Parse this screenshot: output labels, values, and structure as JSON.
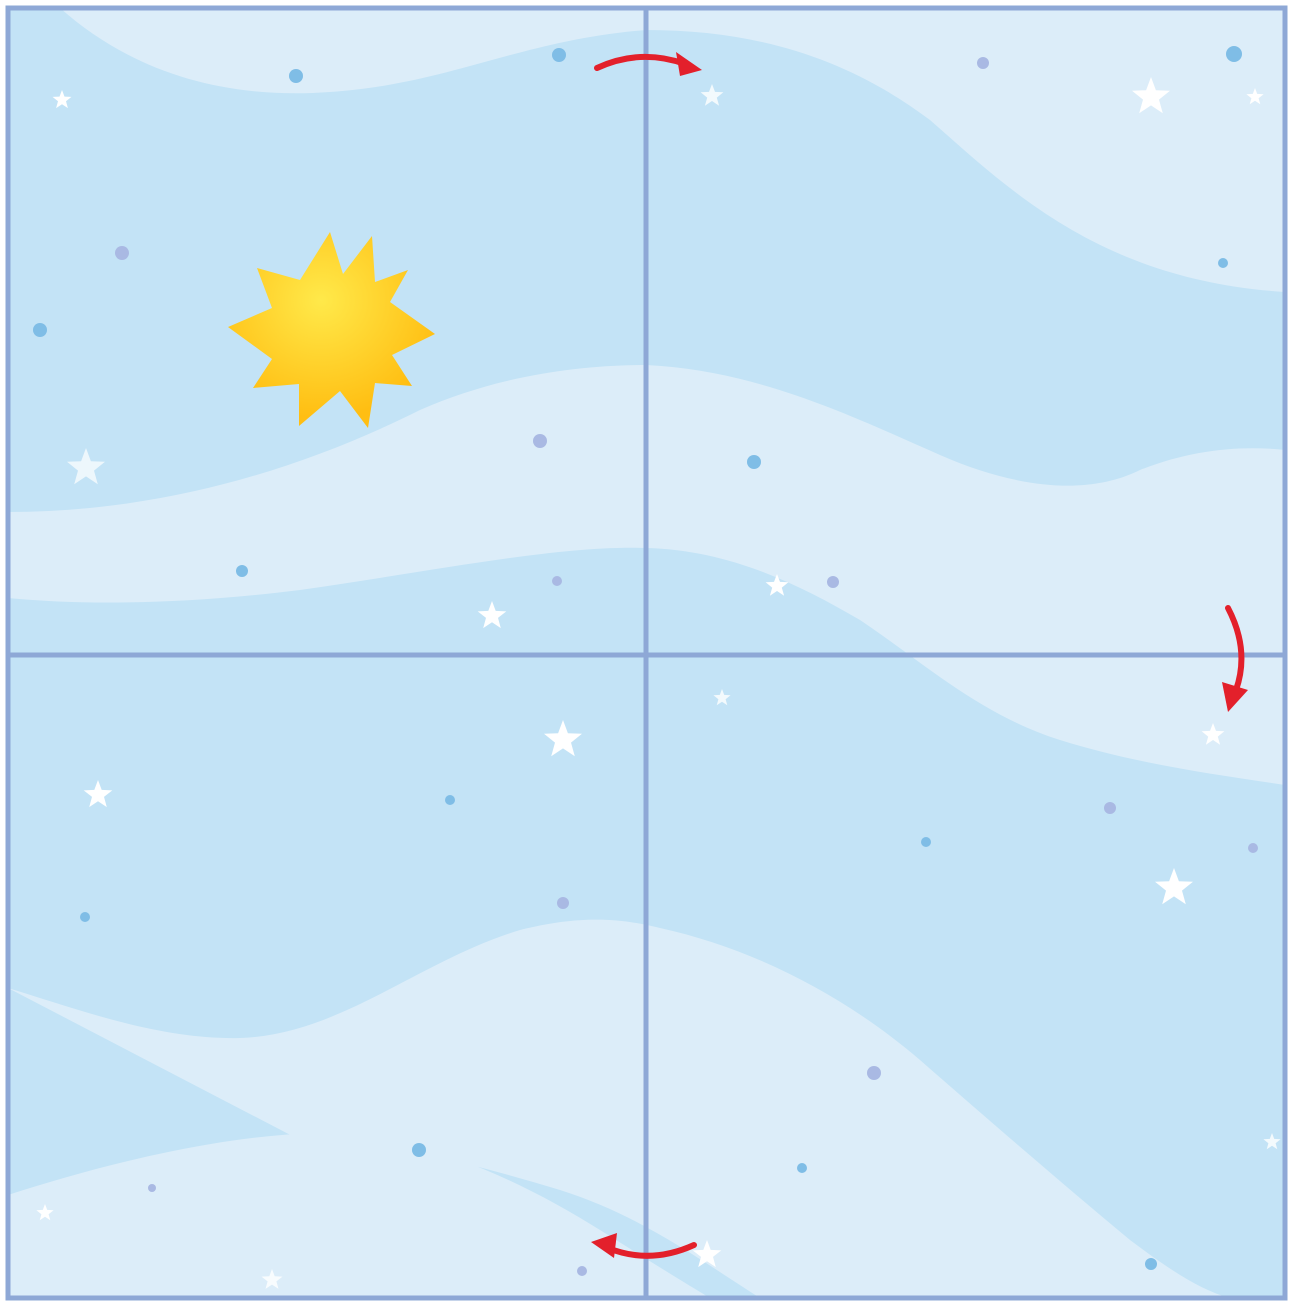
{
  "colors": {
    "sky_base": "#c3e3f6",
    "band_light": "#dcedf9",
    "grid_line": "#8ea8d6",
    "arrow": "#e3202b",
    "sun_outer": "#ffbe12",
    "sun_inner": "#ffe94a",
    "dot_blue": "#7fbde6",
    "dot_lilac": "#a9b9e3",
    "star": "#ffffff"
  },
  "grid": {
    "rows": 2,
    "columns": 2
  },
  "icons": {
    "sun": "sun-icon",
    "arrows": [
      "curved-arrow-right-icon",
      "curved-arrow-down-icon",
      "curved-arrow-left-icon"
    ]
  }
}
